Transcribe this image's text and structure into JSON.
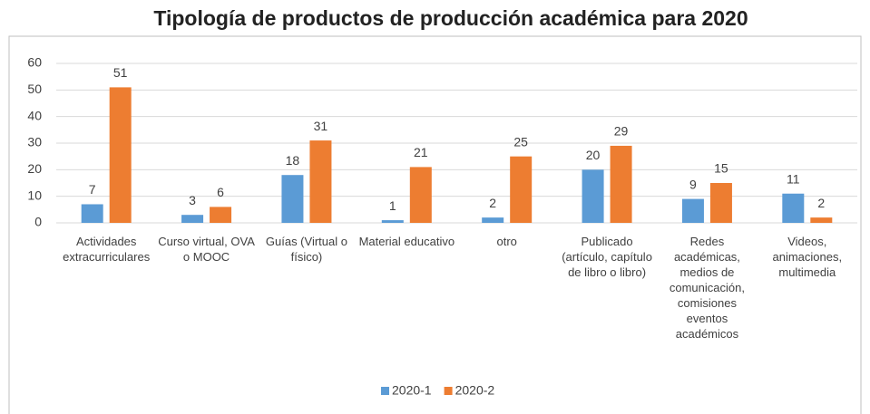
{
  "chart_data": {
    "type": "bar",
    "title": "Tipología de productos de producción académica para 2020",
    "categories": [
      "Actividades extracurriculares",
      "Curso virtual, OVA o MOOC",
      "Guías (Virtual o físico)",
      "Material educativo",
      "otro",
      "Publicado (artículo, capítulo de libro o libro)",
      "Redes académicas, medios de comunicación, comisiones eventos académicos",
      "Videos, animaciones, multimedia"
    ],
    "series": [
      {
        "name": "2020-1",
        "color": "#5b9bd5",
        "values": [
          7,
          3,
          18,
          1,
          2,
          20,
          9,
          11
        ]
      },
      {
        "name": "2020-2",
        "color": "#ed7d31",
        "values": [
          51,
          6,
          31,
          21,
          25,
          29,
          15,
          2
        ]
      }
    ],
    "ylim": [
      0,
      60
    ],
    "yticks": [
      0,
      10,
      20,
      30,
      40,
      50,
      60
    ],
    "grid": true,
    "legend": "bottom"
  }
}
